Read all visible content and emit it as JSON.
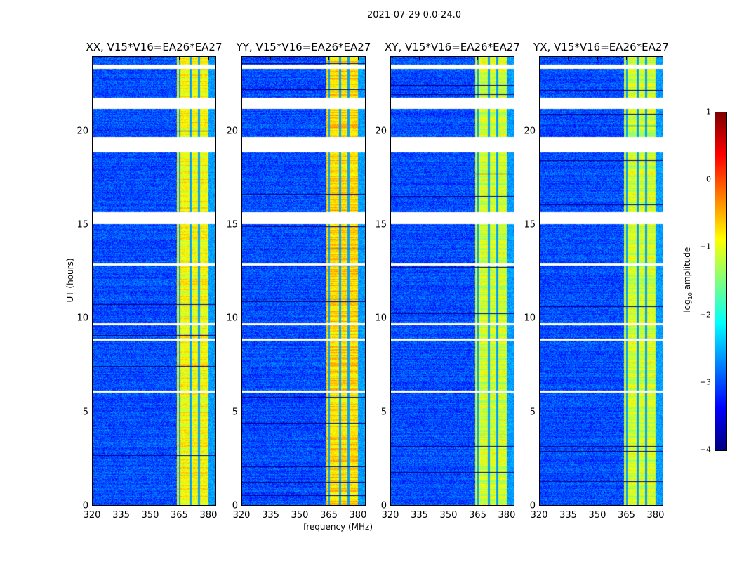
{
  "suptitle": "2021-07-29 0.0-24.0",
  "chart_data": {
    "type": "heatmap",
    "title": "2021-07-29 0.0-24.0",
    "xlabel": "frequency (MHz)",
    "ylabel": "UT (hours)",
    "xlim": [
      320,
      384
    ],
    "ylim": [
      0,
      24
    ],
    "xticks": [
      "320",
      "335",
      "350",
      "365",
      "380"
    ],
    "yticks": [
      "0",
      "5",
      "10",
      "15",
      "20"
    ],
    "panels": [
      {
        "title": "XX, V15*V16=EA26*EA27",
        "band_level": -0.9
      },
      {
        "title": "YY, V15*V16=EA26*EA27",
        "band_level": -0.7
      },
      {
        "title": "XY, V15*V16=EA26*EA27",
        "band_level": -1.1
      },
      {
        "title": "YX, V15*V16=EA26*EA27",
        "band_level": -1.1
      }
    ],
    "bright_band_mhz": [
      363.5,
      380
    ],
    "band_notches_mhz": [
      365,
      370.5,
      375
    ],
    "flagged_hours": [
      [
        23.35,
        23.55
      ],
      [
        21.2,
        21.8
      ],
      [
        18.9,
        19.7
      ],
      [
        15.05,
        15.7
      ],
      [
        12.85,
        12.95
      ],
      [
        9.65,
        9.75
      ],
      [
        8.85,
        8.95
      ],
      [
        6.05,
        6.15
      ]
    ],
    "background_level": -3.0,
    "colorbar": {
      "label": "log10 amplitude",
      "range": [
        -4,
        1
      ],
      "ticks": [
        "1",
        "0",
        "−1",
        "−2",
        "−3",
        "−4"
      ],
      "colormap": "jet"
    }
  }
}
